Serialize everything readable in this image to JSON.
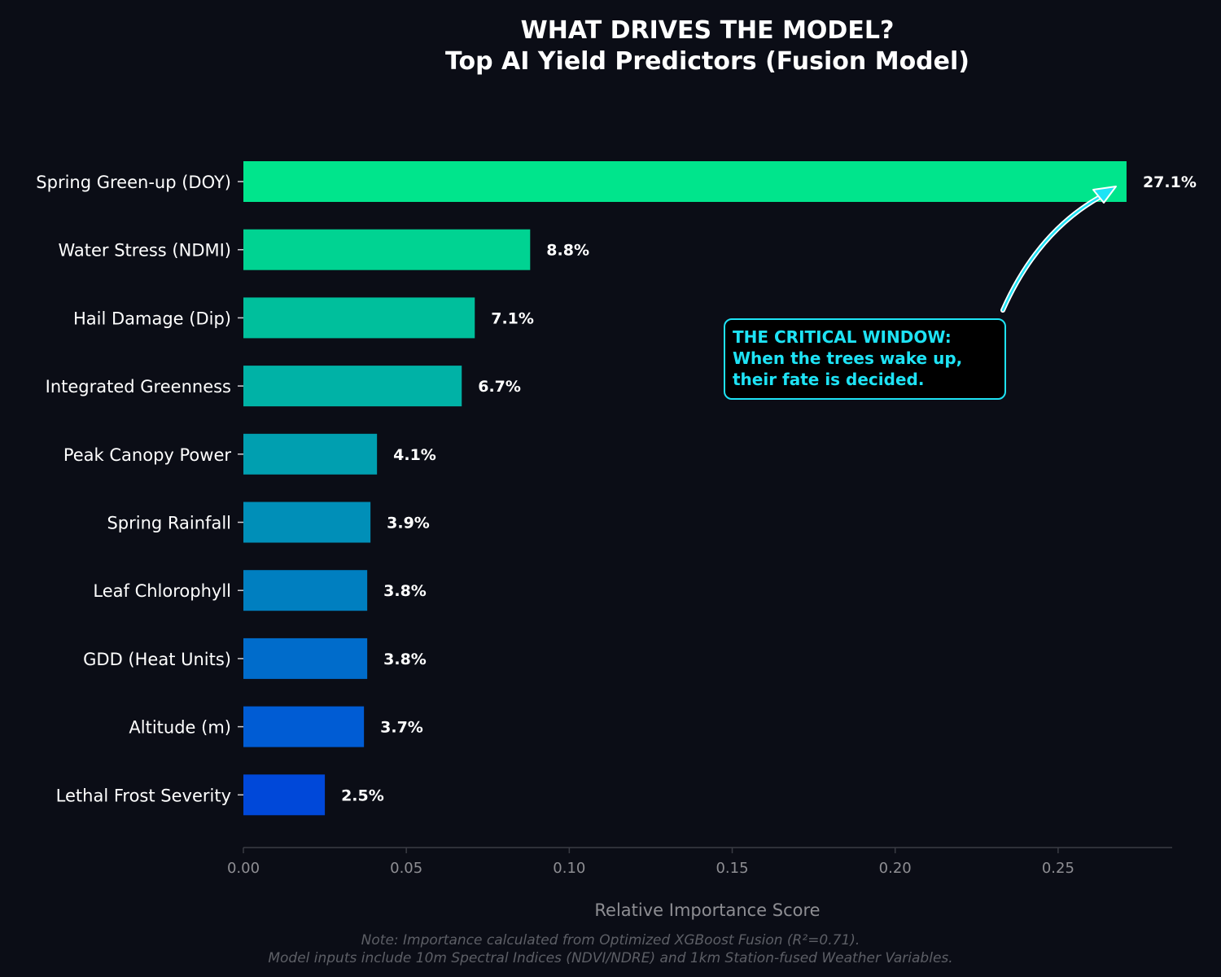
{
  "chart_data": {
    "type": "bar",
    "orientation": "horizontal",
    "title": [
      "WHAT DRIVES THE MODEL?",
      "Top AI Yield Predictors (Fusion Model)"
    ],
    "xlabel": "Relative Importance Score",
    "ylabel": "",
    "xlim": [
      0,
      0.285
    ],
    "xticks": [
      0.0,
      0.05,
      0.1,
      0.15,
      0.2,
      0.25
    ],
    "xtick_labels": [
      "0.00",
      "0.05",
      "0.10",
      "0.15",
      "0.20",
      "0.25"
    ],
    "grid": false,
    "categories": [
      "Spring Green-up (DOY)",
      "Water Stress (NDMI)",
      "Hail Damage (Dip)",
      "Integrated Greenness",
      "Peak Canopy Power",
      "Spring Rainfall",
      "Leaf Chlorophyll",
      "GDD (Heat Units)",
      "Altitude (m)",
      "Lethal Frost Severity"
    ],
    "values": [
      0.271,
      0.088,
      0.071,
      0.067,
      0.041,
      0.039,
      0.038,
      0.038,
      0.037,
      0.025
    ],
    "value_labels": [
      "27.1%",
      "8.8%",
      "7.1%",
      "6.7%",
      "4.1%",
      "3.9%",
      "3.8%",
      "3.8%",
      "3.7%",
      "2.5%"
    ],
    "colors": [
      "#00e58c",
      "#00d392",
      "#00bf9c",
      "#00b2a6",
      "#009fb0",
      "#008fb8",
      "#007fc0",
      "#006ccb",
      "#005cd4",
      "#0048d9"
    ],
    "annotation": {
      "lines": [
        "THE CRITICAL WINDOW:",
        "When the trees wake up,",
        "their fate is decided."
      ],
      "points_to": "Spring Green-up (DOY)",
      "color": "#1ee3f5"
    },
    "note": [
      "Note: Importance calculated from Optimized XGBoost Fusion (R²=0.71).",
      "Model inputs include 10m Spectral Indices (NDVI/NDRE) and 1km Station-fused Weather Variables."
    ]
  },
  "colors": {
    "background": "#0b0d16",
    "axis": "#3a3c44",
    "tick_text": "#8e8e93",
    "note_text": "#5d5f66",
    "accent": "#1ee3f5"
  }
}
